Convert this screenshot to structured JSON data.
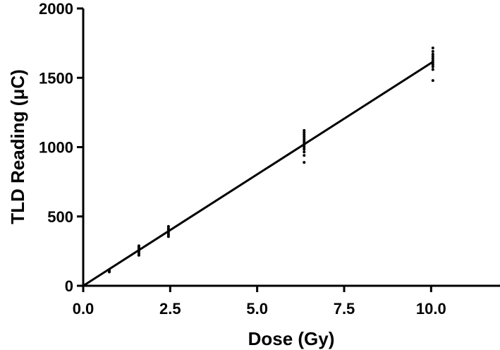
{
  "chart_data": {
    "type": "scatter",
    "title": "",
    "xlabel": "Dose (Gy)",
    "ylabel": "TLD Reading (μC)",
    "xlim": [
      0,
      12
    ],
    "ylim": [
      0,
      2000
    ],
    "x_ticks": [
      "0.0",
      "2.5",
      "5.0",
      "7.5",
      "10.0"
    ],
    "y_ticks": [
      "0",
      "500",
      "1000",
      "1500",
      "2000"
    ],
    "grid": false,
    "legend": "none",
    "series": [
      {
        "type": "scatter",
        "color": "#000000",
        "points": [
          [
            0.75,
            100
          ],
          [
            0.75,
            106
          ],
          [
            0.75,
            112
          ],
          [
            1.6,
            220
          ],
          [
            1.6,
            232
          ],
          [
            1.6,
            244
          ],
          [
            1.6,
            256
          ],
          [
            1.6,
            266
          ],
          [
            1.6,
            276
          ],
          [
            1.6,
            288
          ],
          [
            2.45,
            355
          ],
          [
            2.45,
            368
          ],
          [
            2.45,
            380
          ],
          [
            2.45,
            392
          ],
          [
            2.45,
            402
          ],
          [
            2.45,
            414
          ],
          [
            2.45,
            428
          ],
          [
            6.35,
            890
          ],
          [
            6.35,
            940
          ],
          [
            6.35,
            965
          ],
          [
            6.35,
            985
          ],
          [
            6.35,
            1000
          ],
          [
            6.35,
            1015
          ],
          [
            6.35,
            1030
          ],
          [
            6.35,
            1045
          ],
          [
            6.35,
            1060
          ],
          [
            6.35,
            1075
          ],
          [
            6.35,
            1090
          ],
          [
            6.35,
            1105
          ],
          [
            6.35,
            1120
          ],
          [
            10.05,
            1480
          ],
          [
            10.05,
            1560
          ],
          [
            10.05,
            1580
          ],
          [
            10.05,
            1595
          ],
          [
            10.05,
            1610
          ],
          [
            10.05,
            1625
          ],
          [
            10.05,
            1640
          ],
          [
            10.05,
            1655
          ],
          [
            10.05,
            1670
          ],
          [
            10.05,
            1690
          ],
          [
            10.05,
            1715
          ]
        ]
      },
      {
        "type": "line",
        "color": "#000000",
        "points": [
          [
            0,
            0
          ],
          [
            10.05,
            1615
          ]
        ]
      }
    ]
  }
}
